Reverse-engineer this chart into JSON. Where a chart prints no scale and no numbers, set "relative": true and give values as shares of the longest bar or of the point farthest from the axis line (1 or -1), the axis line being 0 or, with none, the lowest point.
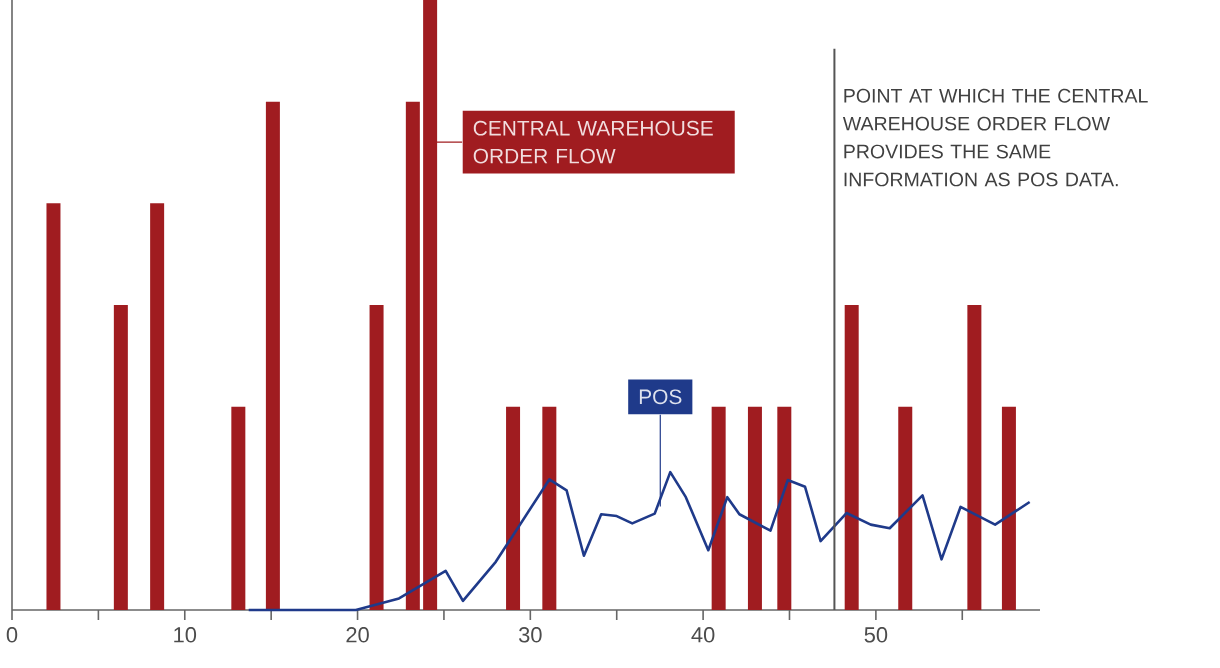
{
  "chart_data": {
    "type": "bar",
    "relative": true,
    "xlim": [
      0,
      59.5
    ],
    "xticks": [
      0,
      {
        "value": 5,
        "label": null
      },
      10,
      {
        "value": 15,
        "label": null
      },
      20,
      {
        "value": 25,
        "label": null
      },
      30,
      {
        "value": 35,
        "label": null
      },
      40,
      {
        "value": 45,
        "label": null
      },
      50,
      {
        "value": 55,
        "label": null
      }
    ],
    "series": [
      {
        "name": "CENTRAL WAREHOUSE ORDER FLOW",
        "color": "#a01c20",
        "x": [
          2.4,
          6.3,
          8.4,
          13.1,
          15.1,
          21.1,
          23.2,
          24.2,
          29.0,
          31.1,
          40.9,
          43.0,
          44.7,
          48.6,
          51.7,
          55.7,
          57.7
        ],
        "values": [
          0.667,
          0.5,
          0.667,
          0.333,
          0.833,
          0.5,
          0.833,
          1,
          0.333,
          0.333,
          0.333,
          0.333,
          0.333,
          0.5,
          0.333,
          0.5,
          0.333
        ]
      },
      {
        "name": "POS",
        "type": "line",
        "color": "#1f3a8a",
        "x": [
          13.7,
          19.9,
          22.4,
          25.1,
          26.1,
          28.0,
          31.1,
          32.1,
          33.1,
          34.1,
          35.0,
          35.9,
          37.2,
          38.1,
          39.0,
          40.3,
          41.4,
          42.1,
          43.9,
          44.9,
          45.9,
          46.8,
          48.3,
          49.7,
          50.8,
          52.7,
          53.8,
          54.9,
          56.9,
          58.9
        ],
        "values": [
          0,
          0,
          0.019,
          0.064,
          0.015,
          0.079,
          0.214,
          0.196,
          0.089,
          0.157,
          0.154,
          0.142,
          0.158,
          0.226,
          0.185,
          0.098,
          0.185,
          0.157,
          0.13,
          0.213,
          0.202,
          0.113,
          0.159,
          0.14,
          0.134,
          0.188,
          0.083,
          0.169,
          0.14,
          0.177
        ]
      }
    ],
    "ref_lines": [
      {
        "axis": "x",
        "value": 47.6,
        "label": "POINT AT WHICH THE CENTRAL WAREHOUSE ORDER FLOW PROVIDES THE SAME INFORMATION AS POS DATA.",
        "color": "#555555"
      }
    ]
  }
}
